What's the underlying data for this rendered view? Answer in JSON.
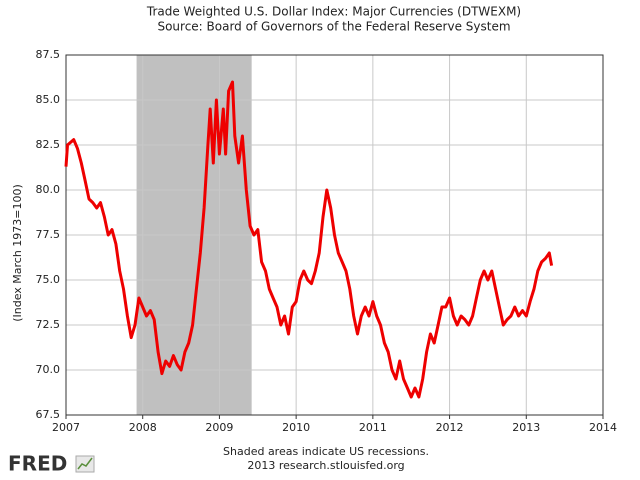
{
  "chart_data": {
    "type": "line",
    "title": "Trade Weighted U.S. Dollar Index: Major Currencies (DTWEXM)",
    "subtitle": "Source: Board of Governors of the Federal Reserve System",
    "y_label": "(Index March 1973=100)",
    "note": "Shaded areas indicate US recessions.",
    "source": "2013 research.stlouisfed.org",
    "logo": "FRED",
    "xlim": [
      2007,
      2014
    ],
    "xticks": [
      2007,
      2008,
      2009,
      2010,
      2011,
      2012,
      2013,
      2014
    ],
    "ylim": [
      67.5,
      87.5
    ],
    "yticks": [
      67.5,
      {
        "value": 70,
        "label": "70.0"
      },
      72.5,
      {
        "value": 75,
        "label": "75.0"
      },
      77.5,
      {
        "value": 80,
        "label": "80.0"
      },
      82.5,
      {
        "value": 85,
        "label": "85.0"
      },
      87.5
    ],
    "grid": true,
    "recessions": [
      [
        2007.92,
        2009.42
      ]
    ],
    "recession_color": "#c0c0c0",
    "x": [
      2007.0,
      2007.02,
      2007.1,
      2007.15,
      2007.2,
      2007.25,
      2007.3,
      2007.35,
      2007.4,
      2007.45,
      2007.5,
      2007.55,
      2007.6,
      2007.65,
      2007.7,
      2007.75,
      2007.8,
      2007.85,
      2007.9,
      2007.95,
      2008.0,
      2008.05,
      2008.1,
      2008.15,
      2008.2,
      2008.25,
      2008.3,
      2008.35,
      2008.4,
      2008.45,
      2008.5,
      2008.55,
      2008.6,
      2008.65,
      2008.7,
      2008.75,
      2008.8,
      2008.85,
      2008.88,
      2008.92,
      2008.96,
      2009.0,
      2009.05,
      2009.08,
      2009.12,
      2009.17,
      2009.2,
      2009.25,
      2009.3,
      2009.35,
      2009.4,
      2009.45,
      2009.5,
      2009.55,
      2009.6,
      2009.65,
      2009.7,
      2009.75,
      2009.8,
      2009.85,
      2009.9,
      2009.95,
      2010.0,
      2010.05,
      2010.1,
      2010.15,
      2010.2,
      2010.25,
      2010.3,
      2010.35,
      2010.4,
      2010.45,
      2010.5,
      2010.55,
      2010.6,
      2010.65,
      2010.7,
      2010.75,
      2010.8,
      2010.85,
      2010.9,
      2010.95,
      2011.0,
      2011.05,
      2011.1,
      2011.15,
      2011.2,
      2011.25,
      2011.3,
      2011.35,
      2011.4,
      2011.45,
      2011.5,
      2011.55,
      2011.6,
      2011.65,
      2011.7,
      2011.75,
      2011.8,
      2011.85,
      2011.9,
      2011.95,
      2012.0,
      2012.05,
      2012.1,
      2012.15,
      2012.2,
      2012.25,
      2012.3,
      2012.35,
      2012.4,
      2012.45,
      2012.5,
      2012.55,
      2012.6,
      2012.65,
      2012.7,
      2012.75,
      2012.8,
      2012.85,
      2012.9,
      2012.95,
      2013.0,
      2013.05,
      2013.1,
      2013.15,
      2013.2,
      2013.25,
      2013.3,
      2013.33
    ],
    "series": [
      {
        "name": "DTWEXM",
        "color": "#ee0000",
        "values": [
          81.3,
          82.5,
          82.8,
          82.3,
          81.5,
          80.5,
          79.5,
          79.3,
          79.0,
          79.3,
          78.5,
          77.5,
          77.8,
          77.0,
          75.5,
          74.5,
          73.0,
          71.8,
          72.5,
          74.0,
          73.5,
          73.0,
          73.3,
          72.8,
          71.0,
          69.8,
          70.5,
          70.2,
          70.8,
          70.3,
          70.0,
          71.0,
          71.5,
          72.5,
          74.5,
          76.5,
          79.0,
          82.5,
          84.5,
          81.5,
          85.0,
          82.0,
          84.5,
          82.0,
          85.5,
          86.0,
          83.0,
          81.5,
          83.0,
          80.0,
          78.0,
          77.5,
          77.8,
          76.0,
          75.5,
          74.5,
          74.0,
          73.5,
          72.5,
          73.0,
          72.0,
          73.5,
          73.8,
          75.0,
          75.5,
          75.0,
          74.8,
          75.5,
          76.5,
          78.5,
          80.0,
          79.0,
          77.5,
          76.5,
          76.0,
          75.5,
          74.5,
          73.0,
          72.0,
          73.0,
          73.5,
          73.0,
          73.8,
          73.0,
          72.5,
          71.5,
          71.0,
          70.0,
          69.5,
          70.5,
          69.5,
          69.0,
          68.5,
          69.0,
          68.5,
          69.5,
          71.0,
          72.0,
          71.5,
          72.5,
          73.5,
          73.5,
          74.0,
          73.0,
          72.5,
          73.0,
          72.8,
          72.5,
          73.0,
          74.0,
          75.0,
          75.5,
          75.0,
          75.5,
          74.5,
          73.5,
          72.5,
          72.8,
          73.0,
          73.5,
          73.0,
          73.3,
          73.0,
          73.8,
          74.5,
          75.5,
          76.0,
          76.2,
          76.5,
          75.8
        ]
      }
    ]
  }
}
